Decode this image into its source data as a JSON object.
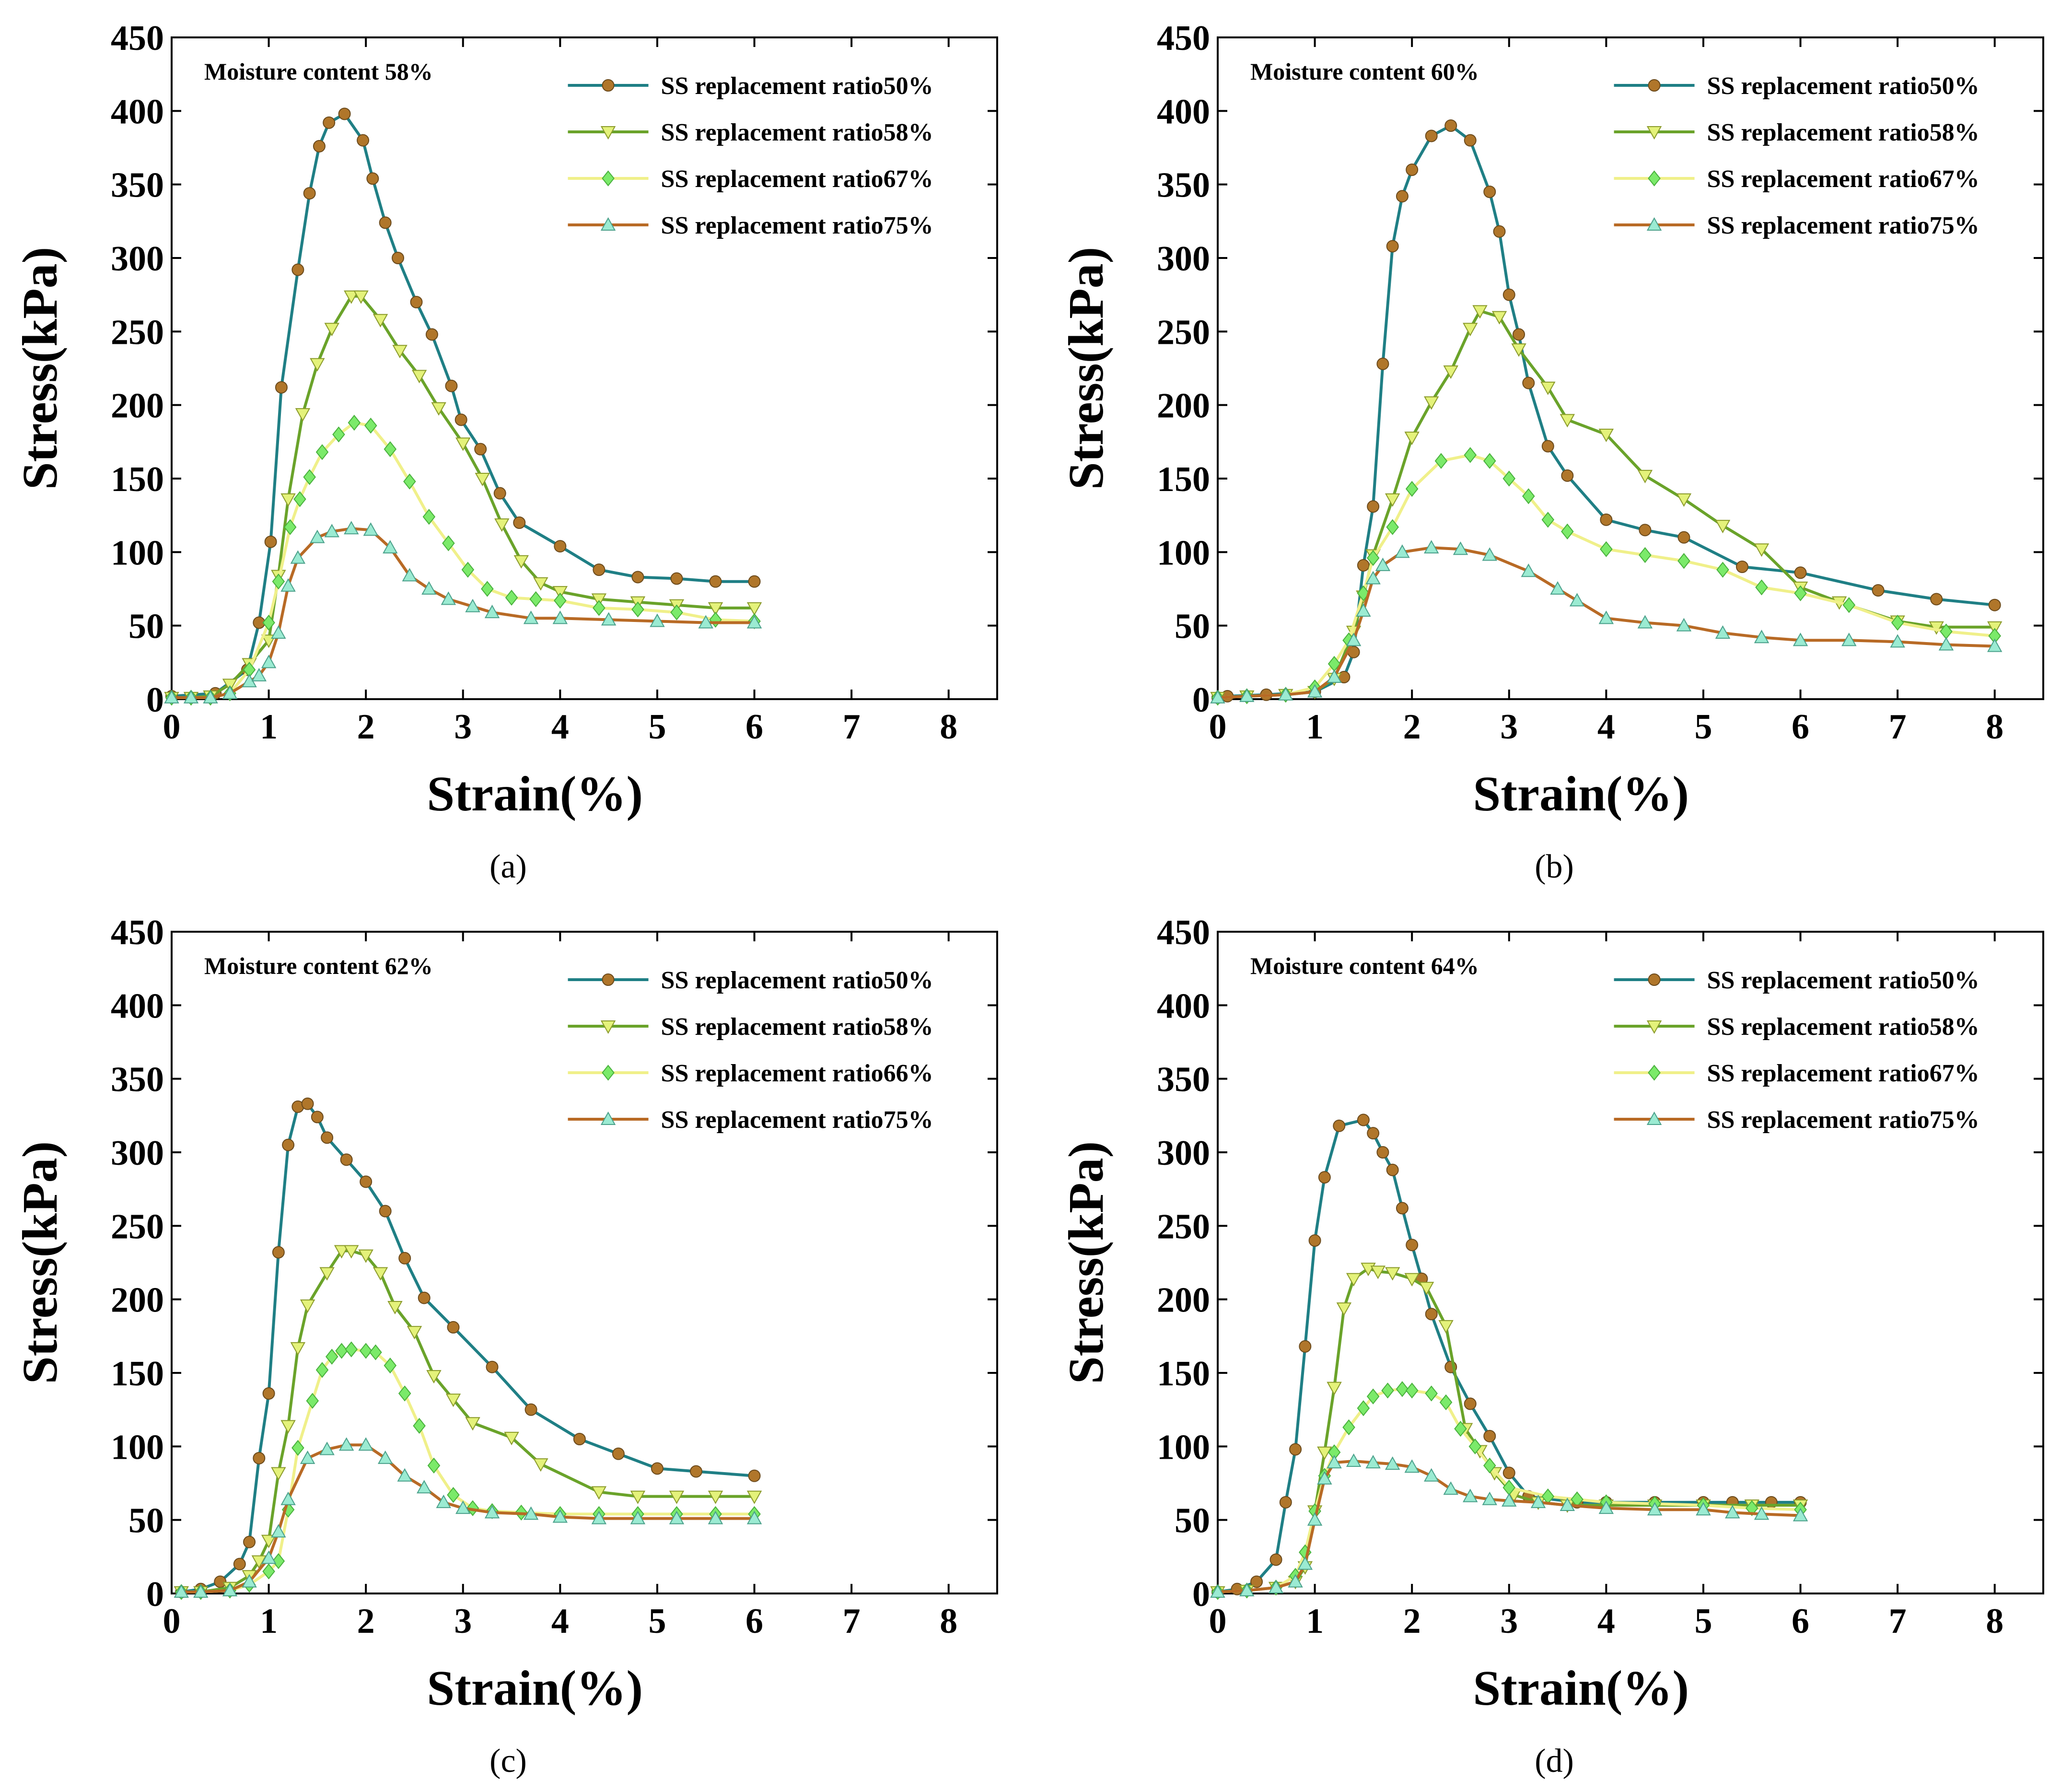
{
  "figure": {
    "captions": [
      "(a)",
      "(b)",
      "(c)",
      "(d)"
    ]
  },
  "colors": {
    "ratio50_line": "#1f7f85",
    "ratio50_marker": "#b0762a",
    "ratio58_line": "#6aa32a",
    "ratio58_marker": "#e4f27a",
    "ratio67_line": "#f0f08a",
    "ratio67_marker": "#7bea6a",
    "ratio75_line": "#b86a25",
    "ratio75_marker": "#9bebd2"
  },
  "chart_data": [
    {
      "type": "line",
      "caption": "(a)",
      "title": "Moisture content 58%",
      "xlabel": "Strain(%)",
      "ylabel": "Stress(kPa)",
      "xlim": [
        0,
        8.5
      ],
      "ylim": [
        0,
        450
      ],
      "xticks": [
        0,
        1,
        2,
        3,
        4,
        5,
        6,
        7,
        8
      ],
      "yticks": [
        0,
        50,
        100,
        150,
        200,
        250,
        300,
        350,
        400,
        450
      ],
      "legend_position": "top-right",
      "series": [
        {
          "name": "SS replacement ratio50%",
          "marker": "circle",
          "x": [
            0,
            0.45,
            0.78,
            0.9,
            1.02,
            1.13,
            1.3,
            1.42,
            1.52,
            1.62,
            1.78,
            1.97,
            2.07,
            2.2,
            2.33,
            2.52,
            2.68,
            2.88,
            2.98,
            3.18,
            3.38,
            3.58,
            4.0,
            4.4,
            4.8,
            5.2,
            5.6,
            6.0
          ],
          "y": [
            2,
            4,
            20,
            52,
            107,
            212,
            292,
            344,
            376,
            392,
            398,
            380,
            354,
            324,
            300,
            270,
            248,
            213,
            190,
            170,
            140,
            120,
            104,
            88,
            83,
            82,
            80,
            80
          ]
        },
        {
          "name": "SS replacement ratio58%",
          "marker": "triangle-down",
          "x": [
            0,
            0.2,
            0.4,
            0.6,
            0.8,
            1.0,
            1.1,
            1.2,
            1.35,
            1.5,
            1.65,
            1.85,
            1.95,
            2.15,
            2.35,
            2.55,
            2.75,
            3.0,
            3.2,
            3.4,
            3.6,
            3.8,
            4.0,
            4.4,
            4.8,
            5.2,
            5.6,
            6.0
          ],
          "y": [
            1,
            1,
            2,
            10,
            24,
            40,
            84,
            136,
            194,
            228,
            252,
            274,
            274,
            258,
            237,
            220,
            198,
            174,
            150,
            119,
            94,
            79,
            73,
            68,
            66,
            64,
            62,
            62
          ]
        },
        {
          "name": "SS replacement ratio67%",
          "marker": "diamond",
          "x": [
            0,
            0.2,
            0.4,
            0.6,
            0.8,
            1.0,
            1.1,
            1.22,
            1.32,
            1.42,
            1.55,
            1.72,
            1.88,
            2.05,
            2.25,
            2.45,
            2.65,
            2.85,
            3.05,
            3.25,
            3.5,
            3.75,
            4.0,
            4.4,
            4.8,
            5.2,
            5.6,
            6.0
          ],
          "y": [
            1,
            1,
            1,
            4,
            20,
            52,
            80,
            117,
            136,
            151,
            168,
            180,
            188,
            186,
            170,
            148,
            124,
            106,
            88,
            75,
            69,
            68,
            67,
            62,
            61,
            59,
            54,
            53
          ]
        },
        {
          "name": "SS replacement ratio75%",
          "marker": "triangle-up",
          "x": [
            0,
            0.2,
            0.4,
            0.6,
            0.8,
            0.9,
            1.0,
            1.1,
            1.2,
            1.3,
            1.5,
            1.65,
            1.85,
            2.05,
            2.25,
            2.45,
            2.65,
            2.85,
            3.1,
            3.3,
            3.7,
            4.0,
            4.5,
            5.0,
            5.5,
            6.0
          ],
          "y": [
            1,
            1,
            1,
            4,
            12,
            16,
            25,
            45,
            77,
            96,
            110,
            114,
            116,
            115,
            103,
            84,
            75,
            68,
            63,
            59,
            55,
            55,
            54,
            53,
            52,
            52
          ]
        }
      ]
    },
    {
      "type": "line",
      "caption": "(b)",
      "title": "Moisture content 60%",
      "xlabel": "Strain(%)",
      "ylabel": "Stress(kPa)",
      "xlim": [
        0,
        8.5
      ],
      "ylim": [
        0,
        450
      ],
      "xticks": [
        0,
        1,
        2,
        3,
        4,
        5,
        6,
        7,
        8
      ],
      "yticks": [
        0,
        50,
        100,
        150,
        200,
        250,
        300,
        350,
        400,
        450
      ],
      "legend_position": "top-right",
      "series": [
        {
          "name": "SS replacement ratio50%",
          "marker": "circle",
          "x": [
            0,
            0.1,
            0.5,
            1.0,
            1.3,
            1.4,
            1.5,
            1.6,
            1.7,
            1.8,
            1.9,
            2.0,
            2.2,
            2.4,
            2.6,
            2.8,
            2.9,
            3.0,
            3.1,
            3.2,
            3.4,
            3.6,
            4.0,
            4.4,
            4.8,
            5.4,
            6.0,
            6.8,
            7.4,
            8.0
          ],
          "y": [
            1,
            2,
            3,
            5,
            15,
            32,
            91,
            131,
            228,
            308,
            342,
            360,
            383,
            390,
            380,
            345,
            318,
            275,
            248,
            215,
            172,
            152,
            122,
            115,
            110,
            90,
            86,
            74,
            68,
            64
          ]
        },
        {
          "name": "SS replacement ratio58%",
          "marker": "triangle-down",
          "x": [
            0,
            0.3,
            0.7,
            1.0,
            1.2,
            1.4,
            1.5,
            1.6,
            1.8,
            2.0,
            2.2,
            2.4,
            2.6,
            2.7,
            2.9,
            3.1,
            3.4,
            3.6,
            4.0,
            4.4,
            4.8,
            5.2,
            5.6,
            6.0,
            6.4,
            7.0,
            7.4,
            8.0
          ],
          "y": [
            1,
            2,
            3,
            5,
            14,
            46,
            70,
            98,
            136,
            178,
            202,
            223,
            252,
            264,
            260,
            238,
            212,
            190,
            180,
            152,
            136,
            118,
            102,
            76,
            66,
            53,
            49,
            49
          ]
        },
        {
          "name": "SS replacement ratio67%",
          "marker": "diamond",
          "x": [
            0,
            0.3,
            0.7,
            1.0,
            1.2,
            1.35,
            1.5,
            1.6,
            1.8,
            2.0,
            2.3,
            2.6,
            2.8,
            3.0,
            3.2,
            3.4,
            3.6,
            4.0,
            4.4,
            4.8,
            5.2,
            5.6,
            6.0,
            6.5,
            7.0,
            7.5,
            8.0
          ],
          "y": [
            1,
            2,
            3,
            8,
            24,
            40,
            72,
            96,
            117,
            143,
            162,
            166,
            162,
            150,
            138,
            122,
            114,
            102,
            98,
            94,
            88,
            76,
            72,
            64,
            52,
            46,
            43
          ]
        },
        {
          "name": "SS replacement ratio75%",
          "marker": "triangle-up",
          "x": [
            0,
            0.3,
            0.7,
            1.0,
            1.2,
            1.4,
            1.5,
            1.6,
            1.7,
            1.9,
            2.2,
            2.5,
            2.8,
            3.2,
            3.5,
            3.7,
            4.0,
            4.4,
            4.8,
            5.2,
            5.6,
            6.0,
            6.5,
            7.0,
            7.5,
            8.0
          ],
          "y": [
            1,
            2,
            3,
            5,
            15,
            40,
            60,
            82,
            91,
            100,
            103,
            102,
            98,
            87,
            75,
            67,
            55,
            52,
            50,
            45,
            42,
            40,
            40,
            39,
            37,
            36
          ]
        }
      ]
    },
    {
      "type": "line",
      "caption": "(c)",
      "title": "Moisture content 62%",
      "xlabel": "Strain(%)",
      "ylabel": "Stress(kPa)",
      "xlim": [
        0,
        8.5
      ],
      "ylim": [
        0,
        450
      ],
      "xticks": [
        0,
        1,
        2,
        3,
        4,
        5,
        6,
        7,
        8
      ],
      "yticks": [
        0,
        50,
        100,
        150,
        200,
        250,
        300,
        350,
        400,
        450
      ],
      "legend_position": "top-right",
      "series": [
        {
          "name": "SS replacement ratio50%",
          "marker": "circle",
          "x": [
            0.1,
            0.3,
            0.5,
            0.7,
            0.8,
            0.9,
            1.0,
            1.1,
            1.2,
            1.3,
            1.4,
            1.5,
            1.6,
            1.8,
            2.0,
            2.2,
            2.4,
            2.6,
            2.9,
            3.3,
            3.7,
            4.2,
            4.6,
            5.0,
            5.4,
            6.0
          ],
          "y": [
            1,
            3,
            8,
            20,
            35,
            92,
            136,
            232,
            305,
            331,
            333,
            324,
            310,
            295,
            280,
            260,
            228,
            201,
            181,
            154,
            125,
            105,
            95,
            85,
            83,
            80
          ]
        },
        {
          "name": "SS replacement ratio58%",
          "marker": "triangle-down",
          "x": [
            0.1,
            0.3,
            0.6,
            0.8,
            0.9,
            1.0,
            1.1,
            1.2,
            1.3,
            1.4,
            1.6,
            1.75,
            1.85,
            2.0,
            2.15,
            2.3,
            2.5,
            2.7,
            2.9,
            3.1,
            3.5,
            3.8,
            4.4,
            4.8,
            5.2,
            5.6,
            6.0
          ],
          "y": [
            1,
            1,
            4,
            12,
            22,
            36,
            82,
            114,
            167,
            196,
            218,
            233,
            233,
            230,
            218,
            195,
            178,
            148,
            132,
            116,
            106,
            88,
            69,
            66,
            66,
            66,
            66
          ]
        },
        {
          "name": "SS replacement ratio66%",
          "marker": "diamond",
          "x": [
            0.1,
            0.3,
            0.6,
            0.8,
            1.0,
            1.1,
            1.2,
            1.3,
            1.45,
            1.55,
            1.65,
            1.75,
            1.85,
            2.0,
            2.1,
            2.25,
            2.4,
            2.55,
            2.7,
            2.9,
            3.1,
            3.3,
            3.6,
            4.0,
            4.4,
            4.8,
            5.2,
            5.6,
            6.0
          ],
          "y": [
            1,
            1,
            2,
            6,
            15,
            22,
            57,
            99,
            131,
            152,
            161,
            165,
            166,
            165,
            164,
            155,
            136,
            114,
            87,
            67,
            58,
            56,
            55,
            54,
            54,
            54,
            54,
            54,
            54
          ]
        },
        {
          "name": "SS replacement ratio75%",
          "marker": "triangle-up",
          "x": [
            0.1,
            0.3,
            0.6,
            0.8,
            1.0,
            1.1,
            1.2,
            1.4,
            1.6,
            1.8,
            2.0,
            2.2,
            2.4,
            2.6,
            2.8,
            3.0,
            3.3,
            3.7,
            4.0,
            4.4,
            4.8,
            5.2,
            5.6,
            6.0
          ],
          "y": [
            1,
            1,
            2,
            8,
            24,
            42,
            64,
            92,
            98,
            101,
            101,
            92,
            80,
            72,
            62,
            58,
            55,
            54,
            52,
            51,
            51,
            51,
            51,
            51
          ]
        }
      ]
    },
    {
      "type": "line",
      "caption": "(d)",
      "title": "Moisture content 64%",
      "xlabel": "Strain(%)",
      "ylabel": "Stress(kPa)",
      "xlim": [
        0,
        8.5
      ],
      "ylim": [
        0,
        450
      ],
      "xticks": [
        0,
        1,
        2,
        3,
        4,
        5,
        6,
        7,
        8
      ],
      "yticks": [
        0,
        50,
        100,
        150,
        200,
        250,
        300,
        350,
        400,
        450
      ],
      "legend_position": "top-right",
      "series": [
        {
          "name": "SS replacement ratio50%",
          "marker": "circle",
          "x": [
            0,
            0.2,
            0.4,
            0.6,
            0.7,
            0.8,
            0.9,
            1.0,
            1.1,
            1.25,
            1.5,
            1.6,
            1.7,
            1.8,
            1.9,
            2.0,
            2.1,
            2.2,
            2.4,
            2.6,
            2.8,
            3.0,
            3.2,
            3.7,
            4.0,
            4.5,
            5.0,
            5.3,
            5.7,
            6.0
          ],
          "y": [
            1,
            3,
            8,
            23,
            62,
            98,
            168,
            240,
            283,
            318,
            322,
            313,
            300,
            288,
            262,
            237,
            214,
            190,
            154,
            129,
            107,
            82,
            66,
            62,
            62,
            62,
            62,
            62,
            62,
            62
          ]
        },
        {
          "name": "SS replacement ratio58%",
          "marker": "triangle-down",
          "x": [
            0,
            0.3,
            0.6,
            0.8,
            0.9,
            1.0,
            1.1,
            1.2,
            1.3,
            1.4,
            1.55,
            1.65,
            1.8,
            2.0,
            2.15,
            2.35,
            2.55,
            2.7,
            2.85,
            3.05,
            3.3,
            3.6,
            4.0,
            4.5,
            5.0,
            5.5,
            6.0
          ],
          "y": [
            1,
            2,
            4,
            8,
            18,
            56,
            96,
            140,
            194,
            214,
            221,
            219,
            218,
            214,
            208,
            182,
            112,
            97,
            82,
            67,
            62,
            60,
            60,
            60,
            60,
            60,
            60
          ]
        },
        {
          "name": "SS replacement ratio67%",
          "marker": "diamond",
          "x": [
            0,
            0.3,
            0.6,
            0.8,
            0.9,
            1.0,
            1.1,
            1.2,
            1.35,
            1.5,
            1.6,
            1.75,
            1.9,
            2.0,
            2.2,
            2.35,
            2.5,
            2.65,
            2.8,
            3.0,
            3.4,
            3.7,
            4.0,
            4.5,
            5.0,
            5.5,
            6.0
          ],
          "y": [
            1,
            2,
            4,
            12,
            28,
            56,
            80,
            96,
            113,
            126,
            134,
            138,
            139,
            138,
            136,
            130,
            112,
            100,
            87,
            72,
            66,
            64,
            62,
            61,
            60,
            58,
            57
          ]
        },
        {
          "name": "SS replacement ratio75%",
          "marker": "triangle-up",
          "x": [
            0,
            0.3,
            0.6,
            0.8,
            0.9,
            1.0,
            1.1,
            1.2,
            1.4,
            1.6,
            1.8,
            2.0,
            2.2,
            2.4,
            2.6,
            2.8,
            3.0,
            3.3,
            3.6,
            4.0,
            4.5,
            5.0,
            5.3,
            5.6,
            6.0
          ],
          "y": [
            1,
            2,
            4,
            8,
            20,
            50,
            78,
            89,
            90,
            89,
            88,
            86,
            80,
            71,
            66,
            64,
            63,
            62,
            60,
            58,
            57,
            57,
            55,
            54,
            53
          ]
        }
      ]
    }
  ]
}
